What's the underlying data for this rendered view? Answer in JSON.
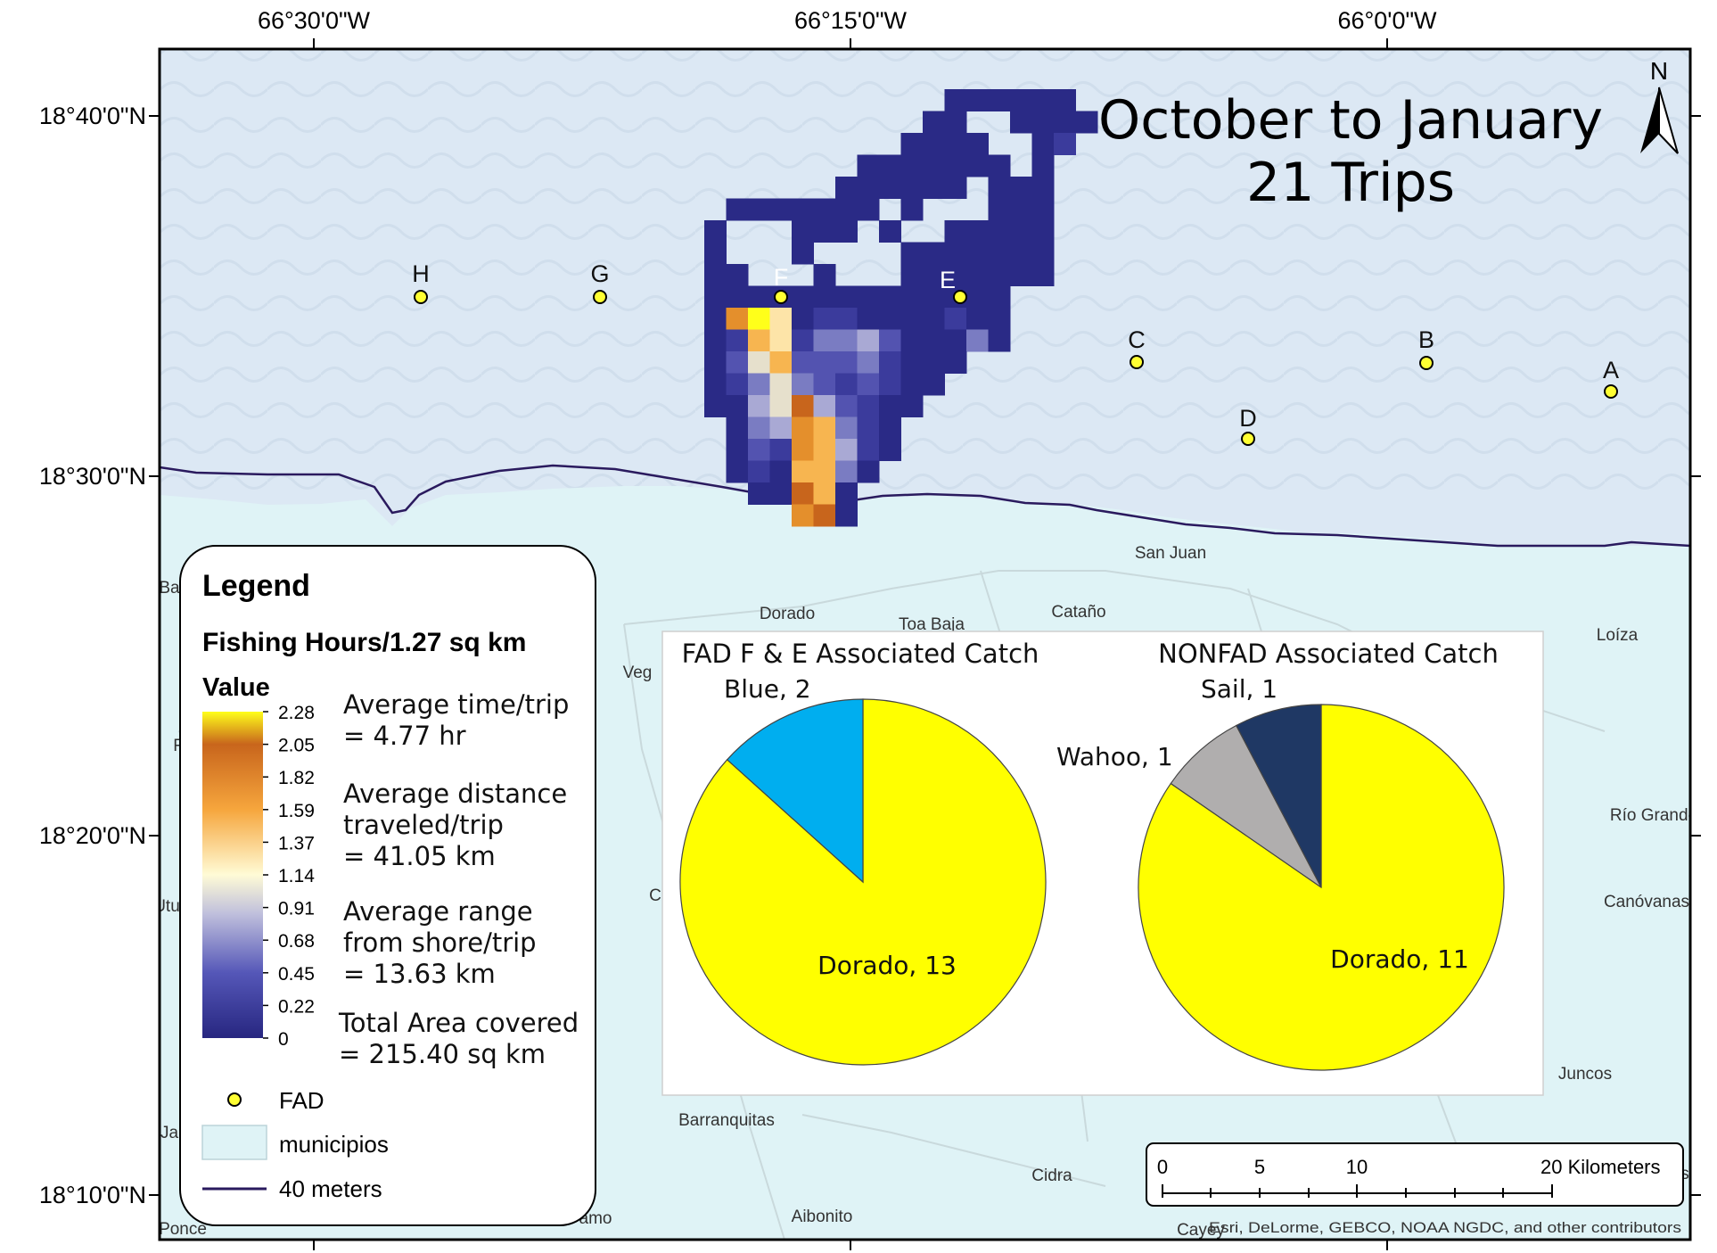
{
  "map": {
    "title_line1": "October to January",
    "title_line2": "21 Trips",
    "north_label": "N",
    "attribution": "Esri, DeLorme, GEBCO, NOAA NGDC, and other contributors",
    "colors": {
      "ocean": "#dce8f4",
      "land": "#dff3f6",
      "coast_line": "#2a1a5e",
      "fad_fill": "#ffff33",
      "border": "#000000"
    },
    "longitude_labels": [
      "66°30'0\"W",
      "66°15'0\"W",
      "66°0'0\"W"
    ],
    "latitude_labels": [
      "18°40'0\"N",
      "18°30'0\"N",
      "18°20'0\"N",
      "18°10'0\"N"
    ],
    "fad_labels": [
      "H",
      "G",
      "F",
      "E",
      "C",
      "D",
      "B",
      "A"
    ],
    "places": [
      "San Juan",
      "Dorado",
      "Toa Baja",
      "Cataño",
      "Loíza",
      "Río Grande",
      "Canóvanas",
      "Juncos",
      "Barranquitas",
      "Cidra",
      "Aibonito",
      "Cayey",
      "Ponce",
      "Ba",
      "Veg",
      "Utu",
      "Ja",
      "C",
      "F",
      "amo",
      "s"
    ]
  },
  "legend": {
    "title": "Legend",
    "layer_title": "Fishing Hours/1.27 sq km",
    "value_label": "Value",
    "ramp_ticks": [
      "2.28",
      "2.05",
      "1.82",
      "1.59",
      "1.37",
      "1.14",
      "0.91",
      "0.68",
      "0.45",
      "0.22",
      "0"
    ],
    "stats": [
      {
        "l1": "Average time/trip",
        "l2": "= 4.77 hr"
      },
      {
        "l1": "Average distance",
        "l2": "traveled/trip",
        "l3": "= 41.05 km"
      },
      {
        "l1": "Average range",
        "l2": "from shore/trip",
        "l3": "= 13.63 km"
      },
      {
        "l1": "Total Area covered",
        "l2": "= 215.40 sq km"
      }
    ],
    "items": [
      "FAD",
      "municipios",
      "40 meters"
    ]
  },
  "scale_bar": {
    "ticks": [
      "0",
      "5",
      "10",
      "20 Kilometers"
    ]
  },
  "chart_data": [
    {
      "type": "pie",
      "title": "FAD F & E Associated Catch",
      "slices": [
        {
          "name": "Dorado",
          "value": 13,
          "label": "Dorado, 13",
          "color": "#ffff00"
        },
        {
          "name": "Blue",
          "value": 2,
          "label": "Blue, 2",
          "color": "#00aeef"
        }
      ]
    },
    {
      "type": "pie",
      "title": "NONFAD Associated Catch",
      "slices": [
        {
          "name": "Dorado",
          "value": 11,
          "label": "Dorado, 11",
          "color": "#ffff00"
        },
        {
          "name": "Wahoo",
          "value": 1,
          "label": "Wahoo, 1",
          "color": "#b0aeae"
        },
        {
          "name": "Sail",
          "value": 1,
          "label": "Sail, 1",
          "color": "#1f3864"
        }
      ]
    }
  ]
}
